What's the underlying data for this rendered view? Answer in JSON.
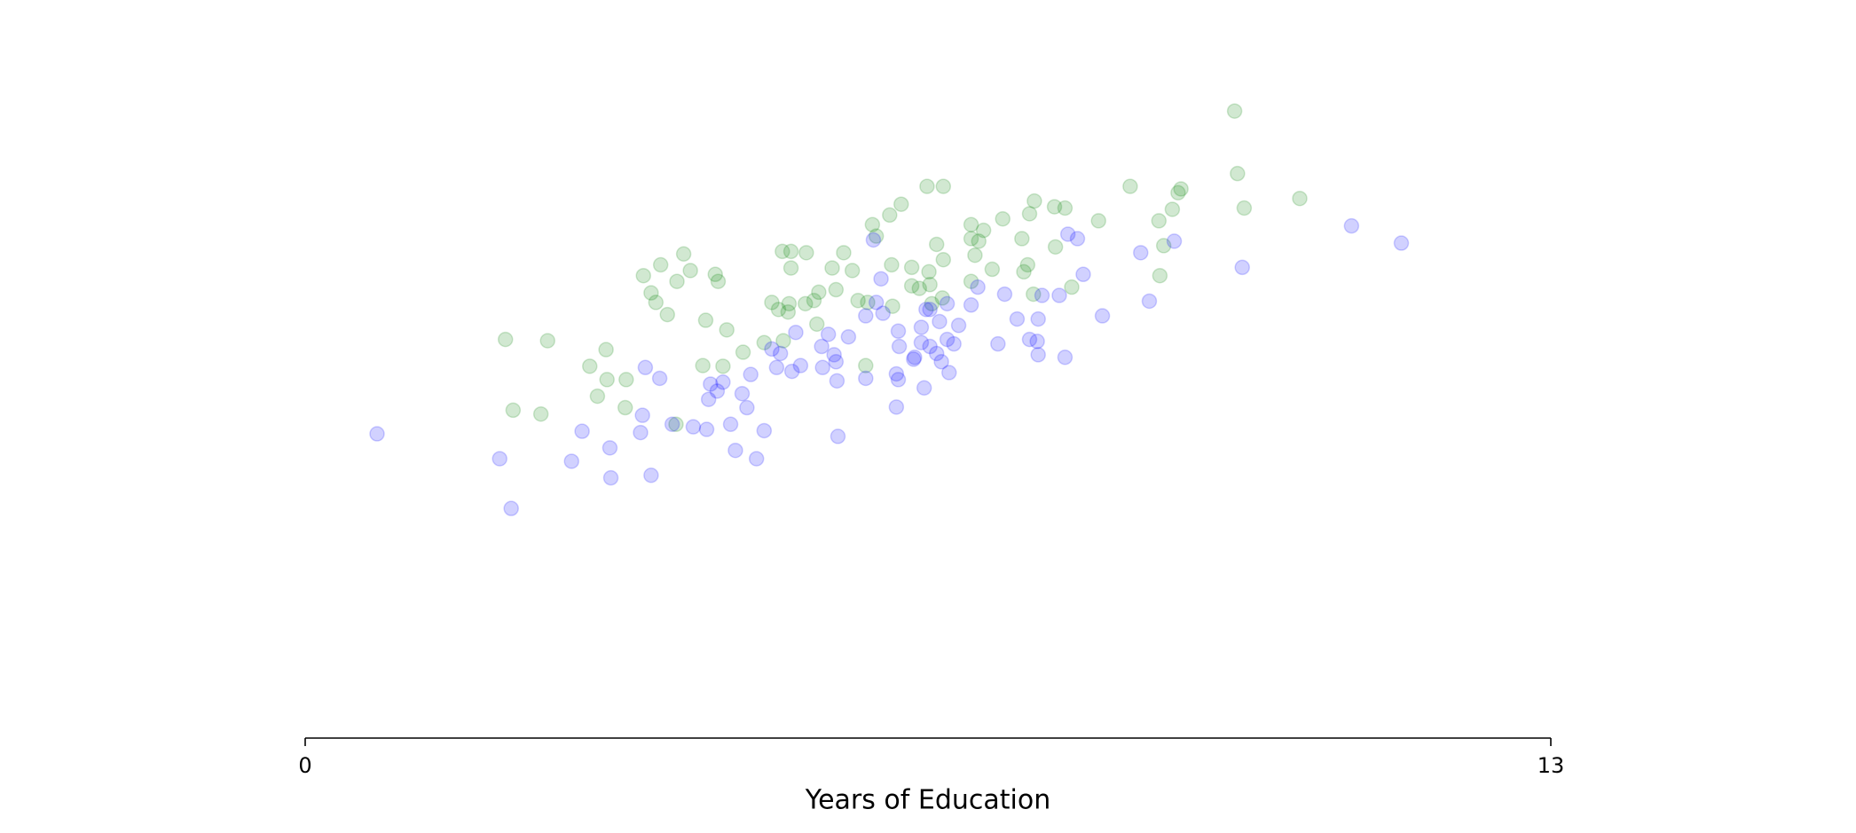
{
  "chart_data": {
    "type": "scatter",
    "xlabel": "Years of Education",
    "xlim": [
      0,
      13
    ],
    "xticks": [
      0,
      13
    ],
    "ylim": [
      0,
      100
    ],
    "alpha": 0.18,
    "series": [
      {
        "color": "#008000",
        "x": [
          9.7,
          9.73,
          9.8,
          10.38,
          8.61,
          9.14,
          9.11,
          9.05,
          8.91,
          8.96,
          8.92,
          8.28,
          7.93,
          7.61,
          7.56,
          7.28,
          6.95,
          7.08,
          7.03,
          6.95,
          7.48,
          6.99,
          7.54,
          7.5,
          7.17,
          6.95,
          6.66,
          6.49,
          6.22,
          6.1,
          5.92,
          5.96,
          6.59,
          6.66,
          6.51,
          6.33,
          6.12,
          5.62,
          5.5,
          5.71,
          5.23,
          5.07,
          4.98,
          5.07,
          5.54,
          5.36,
          5.77,
          5.87,
          6.13,
          6.33,
          6.41,
          6.52,
          6.65,
          6.54,
          4.87,
          4.94,
          5.05,
          5.22,
          5.31,
          5.04,
          3.95,
          3.71,
          4.02,
          3.53,
          3.88,
          4.28,
          4.31,
          3.61,
          3.66,
          3.78,
          4.18,
          4.4,
          2.53,
          2.09,
          3.14,
          2.97,
          4.15,
          4.36,
          4.57,
          4.79,
          4.99,
          5.34,
          5.85,
          3.15,
          3.35,
          3.05,
          2.17,
          2.46,
          3.34,
          3.87,
          7.83,
          8.0,
          7.6,
          7.82
        ],
        "y": [
          98.3,
          88.5,
          83.1,
          84.6,
          86.5,
          86.1,
          85.5,
          82.9,
          81.1,
          77.2,
          72.5,
          81.1,
          83.1,
          84.2,
          82.2,
          81.4,
          80.5,
          79.6,
          77.9,
          78.3,
          78.3,
          75.7,
          74.2,
          73.1,
          73.5,
          71.6,
          86.5,
          86.5,
          83.7,
          82.0,
          80.5,
          78.7,
          77.4,
          75.0,
          73.1,
          73.8,
          74.2,
          76.1,
          73.7,
          73.3,
          76.1,
          76.3,
          76.3,
          73.7,
          70.3,
          69.9,
          68.6,
          68.3,
          67.7,
          70.9,
          70.5,
          71.1,
          69.0,
          68.1,
          68.3,
          67.2,
          68.1,
          68.1,
          68.6,
          66.8,
          75.9,
          74.2,
          73.3,
          72.5,
          71.6,
          72.7,
          71.6,
          69.8,
          68.3,
          66.4,
          65.5,
          64.0,
          62.3,
          62.5,
          60.9,
          58.3,
          58.4,
          58.3,
          60.5,
          62.0,
          62.3,
          64.9,
          58.4,
          56.2,
          56.2,
          53.6,
          51.4,
          50.8,
          51.8,
          49.2,
          77.0,
          70.7,
          69.6,
          83.3
        ]
      },
      {
        "color": "#0000ff",
        "x": [
          0.75,
          2.03,
          2.15,
          2.78,
          2.89,
          3.18,
          3.19,
          3.61,
          3.5,
          3.52,
          3.55,
          3.7,
          3.83,
          4.05,
          4.19,
          4.21,
          4.23,
          4.3,
          4.36,
          4.44,
          4.49,
          4.56,
          4.61,
          4.65,
          4.71,
          4.79,
          4.87,
          4.96,
          4.92,
          5.08,
          5.12,
          5.17,
          5.39,
          5.4,
          5.46,
          5.52,
          5.54,
          5.55,
          5.56,
          5.67,
          5.85,
          5.85,
          5.96,
          6.01,
          5.93,
          6.03,
          6.17,
          6.17,
          6.19,
          6.19,
          6.2,
          6.35,
          6.36,
          6.43,
          6.43,
          6.46,
          6.48,
          6.52,
          6.59,
          6.62,
          6.64,
          6.7,
          6.72,
          6.77,
          6.82,
          6.95,
          7.02,
          7.23,
          7.3,
          7.43,
          7.56,
          7.64,
          7.65,
          7.65,
          7.69,
          7.87,
          7.93,
          7.96,
          8.06,
          8.12,
          8.32,
          8.72,
          8.81,
          9.07,
          9.78,
          10.92,
          11.44,
          6.7,
          6.52
        ],
        "y": [
          47.7,
          43.8,
          36.0,
          43.4,
          48.1,
          45.5,
          40.8,
          41.2,
          47.9,
          50.6,
          58.1,
          56.4,
          49.2,
          48.8,
          48.4,
          53.1,
          55.5,
          54.4,
          55.8,
          49.2,
          45.1,
          54.0,
          51.8,
          57.0,
          43.8,
          48.2,
          61.0,
          60.3,
          58.1,
          57.5,
          63.6,
          58.4,
          61.4,
          58.1,
          63.3,
          60.1,
          59.0,
          56.0,
          47.3,
          62.9,
          66.2,
          56.4,
          68.3,
          72.0,
          78.1,
          66.6,
          57.1,
          51.9,
          56.2,
          63.8,
          61.4,
          59.4,
          59.7,
          64.4,
          62.0,
          54.9,
          67.2,
          61.4,
          60.3,
          65.3,
          59.0,
          62.5,
          57.3,
          61.8,
          64.7,
          67.9,
          70.7,
          61.8,
          69.6,
          65.7,
          62.5,
          62.2,
          60.1,
          65.7,
          69.4,
          69.4,
          59.7,
          79.0,
          78.3,
          72.7,
          66.2,
          76.1,
          68.5,
          77.9,
          73.8,
          80.3,
          77.6,
          68.1,
          67.2
        ]
      }
    ]
  }
}
